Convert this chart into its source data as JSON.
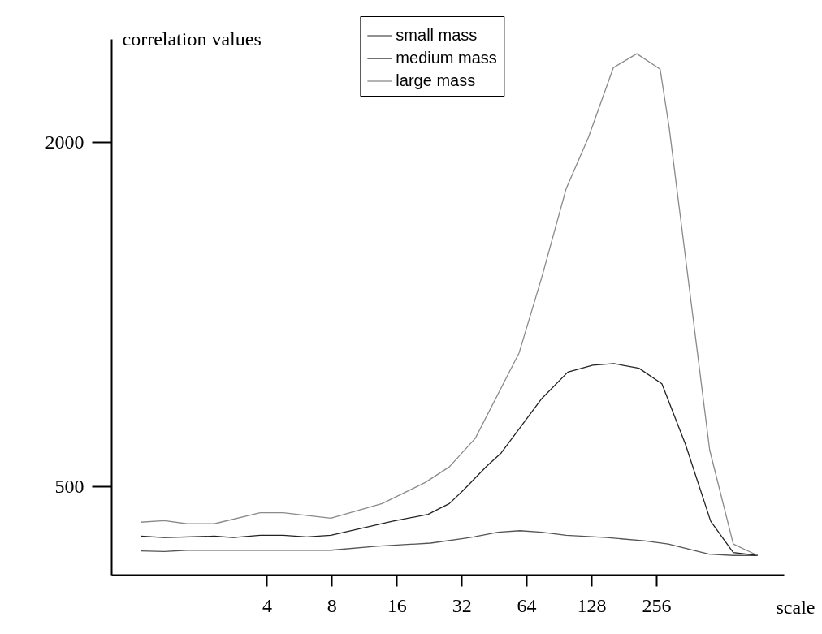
{
  "chart_data": {
    "type": "line",
    "xlabel": "scale",
    "ylabel": "correlation values",
    "log": "x",
    "grid": false,
    "legend": "top",
    "xlim": [
      0.76,
      1000
    ],
    "xticks": [
      4,
      8,
      16,
      32,
      64,
      128,
      256
    ],
    "ylim": [
      115,
      2450
    ],
    "yticks": [
      500,
      2000
    ],
    "series": [
      {
        "name": "small mass",
        "color": "#555555",
        "x": [
          1.04,
          1.34,
          1.71,
          7.93,
          12.9,
          23.0,
          32.6,
          36.4,
          47.2,
          59.7,
          75.4,
          97.8,
          151,
          225,
          291,
          450,
          583,
          756
        ],
        "values": [
          219,
          216,
          222,
          222,
          239,
          253,
          273,
          280,
          300,
          307,
          300,
          287,
          277,
          263,
          249,
          205,
          199,
          199
        ]
      },
      {
        "name": "medium mass",
        "color": "#222222",
        "x": [
          1.04,
          1.34,
          2.28,
          2.8,
          3.73,
          4.76,
          6.12,
          7.93,
          15.3,
          22.4,
          25.1,
          28.1,
          32.6,
          41.9,
          48.9,
          75.4,
          99.6,
          130,
          163,
          213,
          272,
          350,
          458,
          583,
          756
        ],
        "values": [
          283,
          277,
          283,
          277,
          287,
          287,
          280,
          287,
          348,
          378,
          402,
          425,
          483,
          588,
          646,
          883,
          998,
          1028,
          1035,
          1015,
          947,
          683,
          348,
          212,
          199
        ]
      },
      {
        "name": "large mass",
        "color": "#8a8a8a",
        "x": [
          1.04,
          1.34,
          1.71,
          2.28,
          3.73,
          4.76,
          7.93,
          13.7,
          21.7,
          28.1,
          37.1,
          59.2,
          75.4,
          97.8,
          124,
          162,
          208,
          267,
          294,
          453,
          583,
          756
        ],
        "values": [
          344,
          351,
          337,
          337,
          385,
          385,
          361,
          425,
          517,
          585,
          710,
          1082,
          1411,
          1797,
          2020,
          2325,
          2386,
          2318,
          2064,
          659,
          249,
          199
        ]
      }
    ]
  }
}
